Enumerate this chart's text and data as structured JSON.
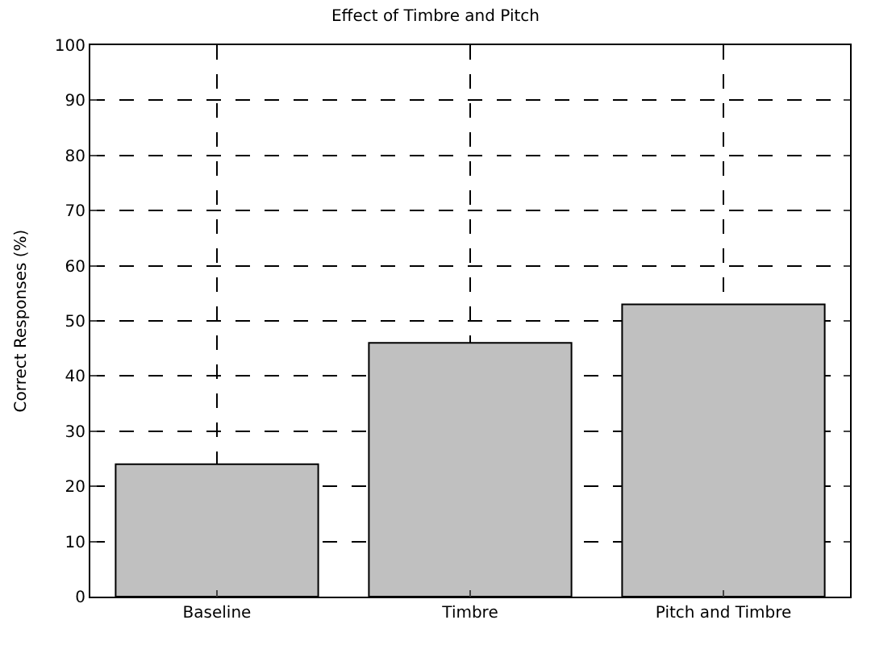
{
  "chart_data": {
    "type": "bar",
    "title": "Effect of Timbre and Pitch",
    "ylabel": "Correct Responses (%)",
    "categories": [
      "Baseline",
      "Timbre",
      "Pitch and Timbre"
    ],
    "values": [
      24,
      46,
      53
    ],
    "color": "#c0c0c0",
    "ylim": [
      0,
      100
    ],
    "yticks": [
      0,
      10,
      20,
      30,
      40,
      50,
      60,
      70,
      80,
      90,
      100
    ],
    "grid": true,
    "legend": false
  }
}
